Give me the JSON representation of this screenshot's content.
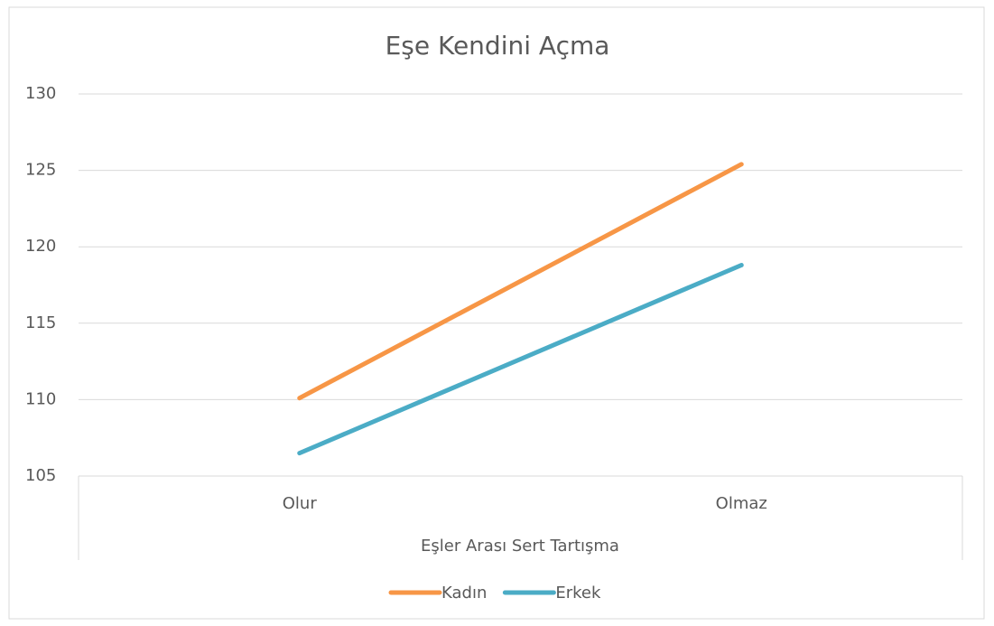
{
  "chart_data": {
    "type": "line",
    "title": "Eşe Kendini Açma",
    "x_label": "Eşler Arası Sert Tartışma",
    "categories": [
      "Olur",
      "Olmaz"
    ],
    "series": [
      {
        "name": "Kadın",
        "color": "#f79646",
        "values": [
          110.1,
          125.4
        ]
      },
      {
        "name": "Erkek",
        "color": "#4bacc6",
        "values": [
          106.5,
          118.8
        ]
      }
    ],
    "ylim": [
      105,
      130
    ],
    "yticks": [
      105,
      110,
      115,
      120,
      125,
      130
    ],
    "grid": true,
    "legend": "bottom"
  }
}
